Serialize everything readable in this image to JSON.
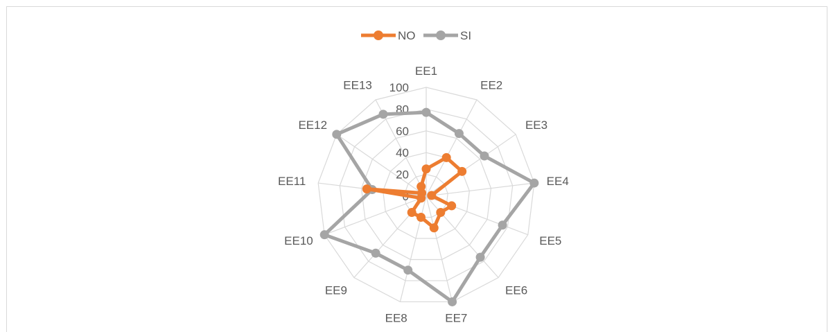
{
  "chart_data": {
    "type": "radar",
    "categories": [
      "EE1",
      "EE2",
      "EE3",
      "EE4",
      "EE5",
      "EE6",
      "EE7",
      "EE8",
      "EE9",
      "EE10",
      "EE11",
      "EE12",
      "EE13"
    ],
    "radial_ticks": [
      "0",
      "20",
      "40",
      "60",
      "80",
      "100"
    ],
    "rmax": 100,
    "series": [
      {
        "name": "NO",
        "color": "#ed7d31",
        "values": [
          25,
          40,
          40,
          5,
          25,
          20,
          30,
          20,
          20,
          5,
          55,
          5,
          10
        ]
      },
      {
        "name": "SI",
        "color": "#a5a5a5",
        "values": [
          77,
          65,
          65,
          100,
          75,
          75,
          100,
          70,
          70,
          100,
          50,
          100,
          85
        ]
      }
    ],
    "legend_position": "top",
    "grid": true
  }
}
